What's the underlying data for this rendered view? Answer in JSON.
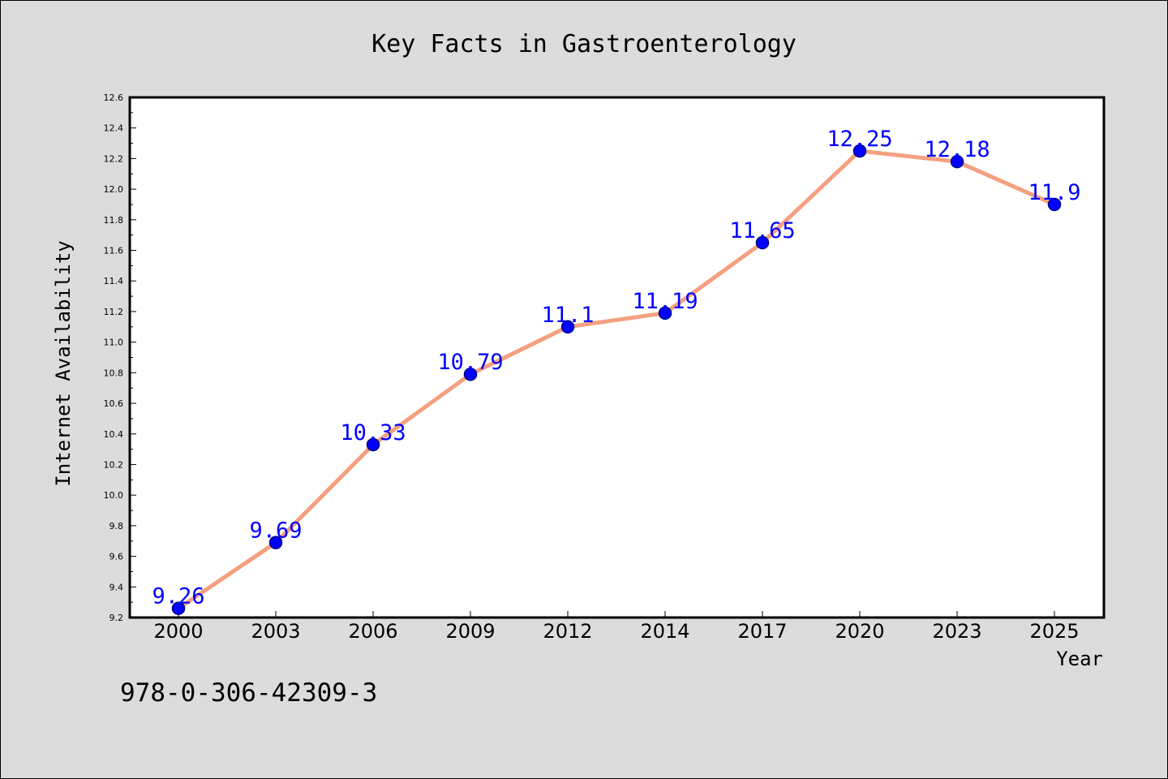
{
  "colors": {
    "background": "#dcdcdc",
    "plot_background": "#ffffff",
    "line": "#f4a080",
    "marker": "#0000ff",
    "marker_edge": "#00008b",
    "data_label": "#0000ff"
  },
  "footnote": "978-0-306-42309-3",
  "chart_data": {
    "type": "line",
    "title": "Key Facts in Gastroenterology",
    "xlabel": "Year",
    "ylabel": "Internet Availability",
    "categories": [
      "2000",
      "2003",
      "2006",
      "2009",
      "2012",
      "2014",
      "2017",
      "2020",
      "2023",
      "2025"
    ],
    "series": [
      {
        "values": [
          9.26,
          9.69,
          10.33,
          10.79,
          11.1,
          11.19,
          11.65,
          12.25,
          12.18,
          11.9
        ],
        "labels": [
          "9.26",
          "9.69",
          "10.33",
          "10.79",
          "11.1",
          "11.19",
          "11.65",
          "12.25",
          "12.18",
          "11.9"
        ]
      }
    ],
    "ylim": [
      9.2,
      12.6
    ],
    "yticks": [
      "9.2",
      "9.4",
      "9.6",
      "9.8",
      "10.0",
      "10.2",
      "10.4",
      "10.6",
      "10.8",
      "11.0",
      "11.2",
      "11.4",
      "11.6",
      "11.8",
      "12.0",
      "12.2",
      "12.4",
      "12.6"
    ],
    "grid": false,
    "legend": "none"
  }
}
